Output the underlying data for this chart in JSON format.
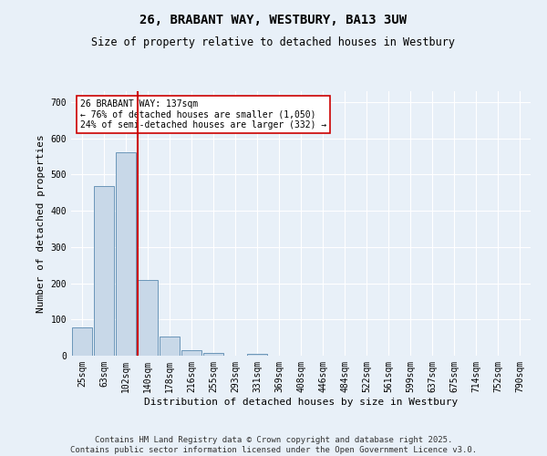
{
  "title": "26, BRABANT WAY, WESTBURY, BA13 3UW",
  "subtitle": "Size of property relative to detached houses in Westbury",
  "xlabel": "Distribution of detached houses by size in Westbury",
  "ylabel": "Number of detached properties",
  "categories": [
    "25sqm",
    "63sqm",
    "102sqm",
    "140sqm",
    "178sqm",
    "216sqm",
    "255sqm",
    "293sqm",
    "331sqm",
    "369sqm",
    "408sqm",
    "446sqm",
    "484sqm",
    "522sqm",
    "561sqm",
    "599sqm",
    "637sqm",
    "675sqm",
    "714sqm",
    "752sqm",
    "790sqm"
  ],
  "values": [
    78,
    468,
    562,
    208,
    54,
    14,
    7,
    0,
    5,
    0,
    0,
    0,
    0,
    0,
    0,
    0,
    0,
    0,
    0,
    0,
    0
  ],
  "bar_color": "#c8d8e8",
  "bar_edge_color": "#5a8ab0",
  "vline_color": "#cc0000",
  "annotation_text": "26 BRABANT WAY: 137sqm\n← 76% of detached houses are smaller (1,050)\n24% of semi-detached houses are larger (332) →",
  "annotation_box_color": "#ffffff",
  "annotation_box_edge": "#cc0000",
  "ylim": [
    0,
    730
  ],
  "yticks": [
    0,
    100,
    200,
    300,
    400,
    500,
    600,
    700
  ],
  "footer": "Contains HM Land Registry data © Crown copyright and database right 2025.\nContains public sector information licensed under the Open Government Licence v3.0.",
  "bg_color": "#e8f0f8",
  "plot_bg_color": "#e8f0f8",
  "grid_color": "#ffffff",
  "title_fontsize": 10,
  "subtitle_fontsize": 8.5,
  "xlabel_fontsize": 8,
  "ylabel_fontsize": 8,
  "tick_fontsize": 7,
  "footer_fontsize": 6.5,
  "vline_x_index": 3
}
